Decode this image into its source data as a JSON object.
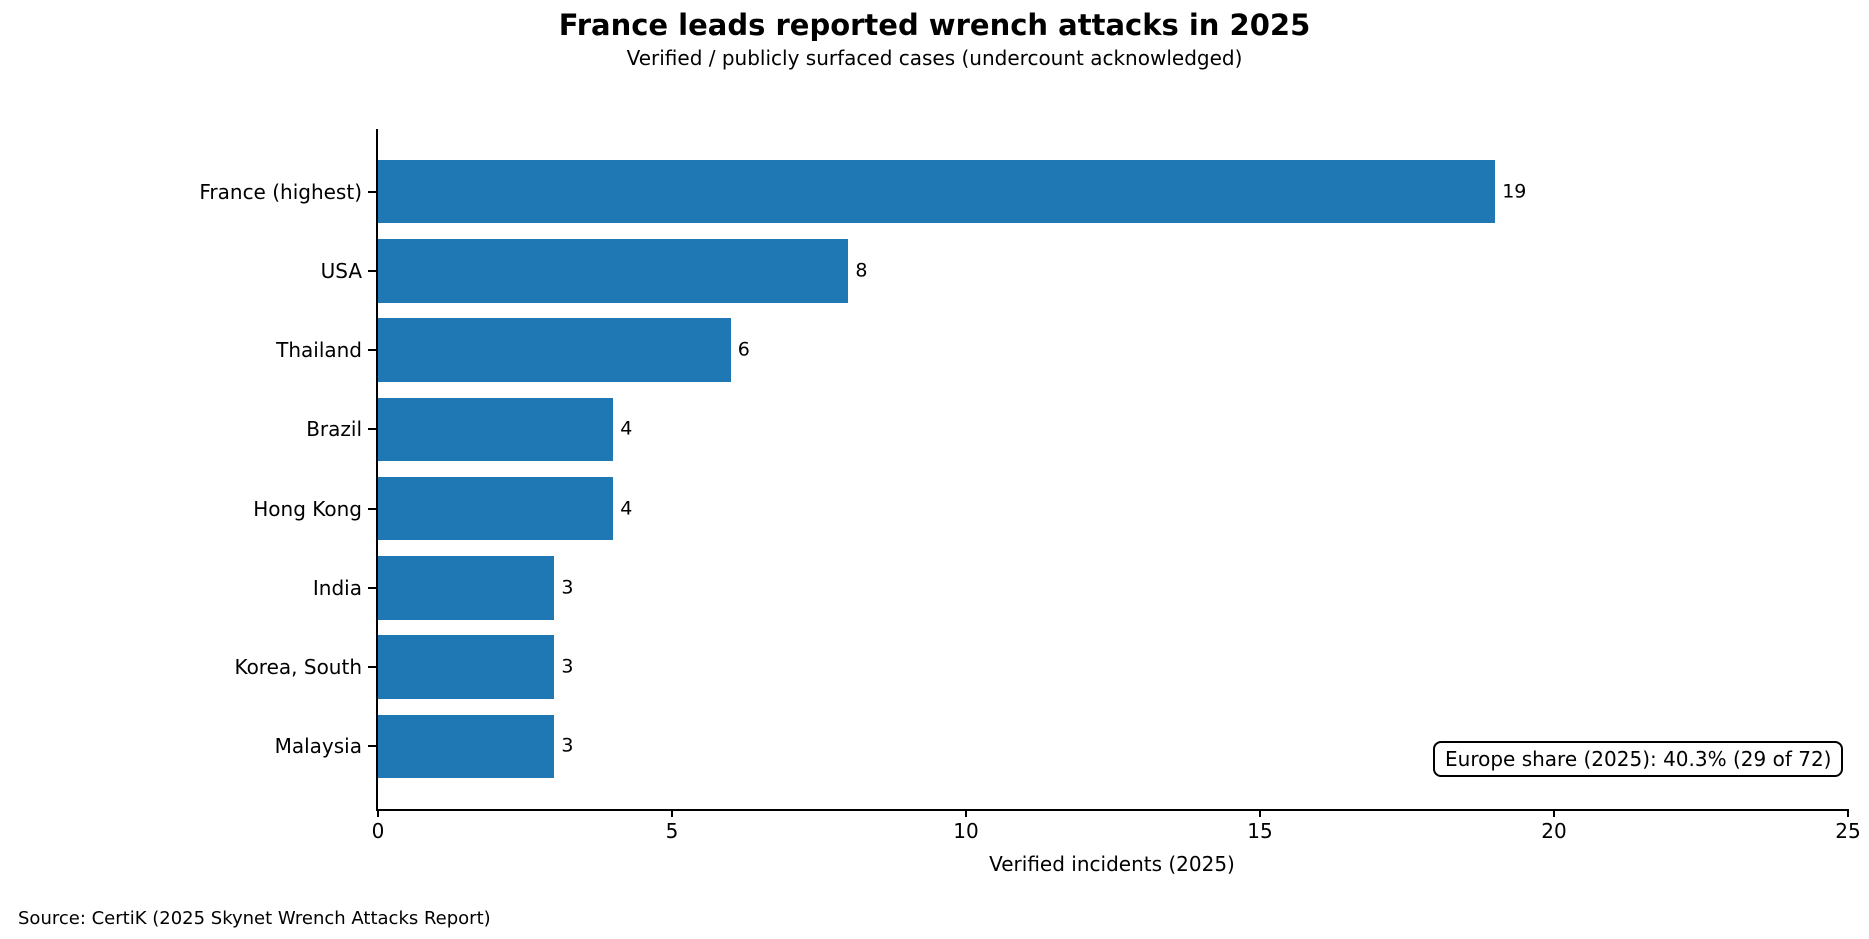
{
  "colors": {
    "bar": "#1f77b4",
    "text": "#000000",
    "background": "#ffffff",
    "axis": "#000000"
  },
  "source_note": "Source: CertiK (2025 Skynet Wrench Attacks Report)",
  "chart_data": {
    "type": "bar",
    "orientation": "horizontal",
    "title": "France leads reported wrench attacks in 2025",
    "subtitle": "Verified / publicly surfaced cases (undercount acknowledged)",
    "xlabel": "Verified incidents (2025)",
    "ylabel": "",
    "categories": [
      "France (highest)",
      "USA",
      "Thailand",
      "Brazil",
      "Hong Kong",
      "India",
      "Korea, South",
      "Malaysia"
    ],
    "values": [
      19,
      8,
      6,
      4,
      4,
      3,
      3,
      3
    ],
    "value_labels": [
      "19",
      "8",
      "6",
      "4",
      "4",
      "3",
      "3",
      "3"
    ],
    "xlim": [
      0,
      25
    ],
    "xticks": [
      0,
      5,
      10,
      15,
      20,
      25
    ],
    "grid": false,
    "legend": null,
    "bar_color": "#1f77b4",
    "annotation": "Europe share (2025): 40.3% (29 of 72)"
  }
}
